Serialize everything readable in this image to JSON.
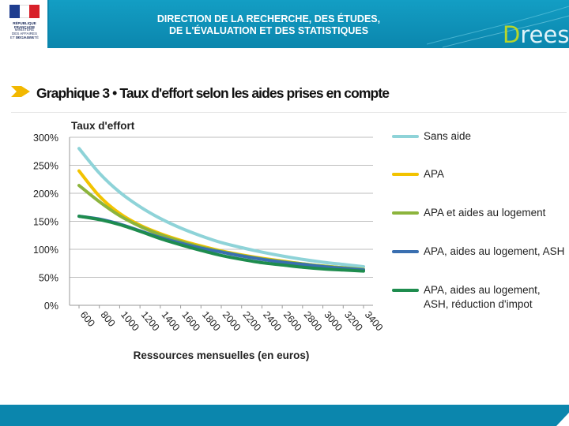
{
  "header": {
    "line1": "DIRECTION DE LA RECHERCHE, DES ÉTUDES,",
    "line2": "DE L'ÉVALUATION ET DES STATISTIQUES",
    "logo_line1": "RÉPUBLIQUE FRANÇAISE",
    "logo_line2": "MINISTÈRE",
    "logo_line3": "DES AFFAIRES SOCIALES",
    "logo_line4": "ET DE LA SANTÉ",
    "brand_initial": "D",
    "brand_rest": "rees"
  },
  "page_title": "Graphique 3 • Taux d'effort selon les aides prises en compte",
  "colors": {
    "header": "#139ec4",
    "footer": "#0b86ad",
    "sans_aide": "#8ed3d8",
    "apa": "#f2c300",
    "apa_logement": "#8cb43c",
    "apa_logement_ash": "#3a6fb0",
    "apa_logement_ash_impot": "#1e8c4e"
  },
  "chart_data": {
    "type": "line",
    "title": "Taux d'effort",
    "xlabel": "Ressources mensuelles (en euros)",
    "ylabel": "Taux d'effort",
    "ylim": [
      0,
      3
    ],
    "y_ticks": [
      0,
      0.5,
      1,
      1.5,
      2,
      2.5,
      3
    ],
    "y_tick_labels": [
      "0%",
      "50%",
      "100%",
      "150%",
      "200%",
      "250%",
      "300%"
    ],
    "x": [
      600,
      800,
      1000,
      1200,
      1400,
      1600,
      1800,
      2000,
      2200,
      2400,
      2600,
      2800,
      3000,
      3200,
      3400
    ],
    "x_tick_labels": [
      "600",
      "800",
      "1000",
      "1200",
      "1400",
      "1600",
      "1800",
      "2000",
      "2200",
      "2400",
      "2600",
      "2800",
      "3000",
      "3200",
      "3400"
    ],
    "legend_position": "right",
    "series": [
      {
        "name": "Sans aide",
        "color": "#8ed3d8",
        "values": [
          2.8,
          2.36,
          2.02,
          1.76,
          1.55,
          1.38,
          1.24,
          1.12,
          1.03,
          0.95,
          0.88,
          0.82,
          0.77,
          0.73,
          0.69
        ]
      },
      {
        "name": "APA",
        "color": "#f2c300",
        "values": [
          2.4,
          1.95,
          1.64,
          1.43,
          1.28,
          1.16,
          1.06,
          0.97,
          0.9,
          0.84,
          0.79,
          0.74,
          0.7,
          0.67,
          0.64
        ]
      },
      {
        "name": "APA et aides au logement",
        "color": "#8cb43c",
        "values": [
          2.14,
          1.85,
          1.6,
          1.41,
          1.26,
          1.14,
          1.04,
          0.96,
          0.89,
          0.83,
          0.78,
          0.74,
          0.7,
          0.67,
          0.64
        ]
      },
      {
        "name": "APA, aides au logement, ASH",
        "color": "#3a6fb0",
        "values": [
          1.59,
          1.54,
          1.45,
          1.33,
          1.21,
          1.11,
          1.02,
          0.95,
          0.88,
          0.82,
          0.77,
          0.73,
          0.69,
          0.66,
          0.63
        ]
      },
      {
        "name": "APA, aides au logement, ASH, réduction d'impot",
        "color": "#1e8c4e",
        "values": [
          1.59,
          1.53,
          1.44,
          1.32,
          1.19,
          1.08,
          0.98,
          0.89,
          0.82,
          0.76,
          0.72,
          0.68,
          0.65,
          0.63,
          0.61
        ]
      }
    ]
  }
}
